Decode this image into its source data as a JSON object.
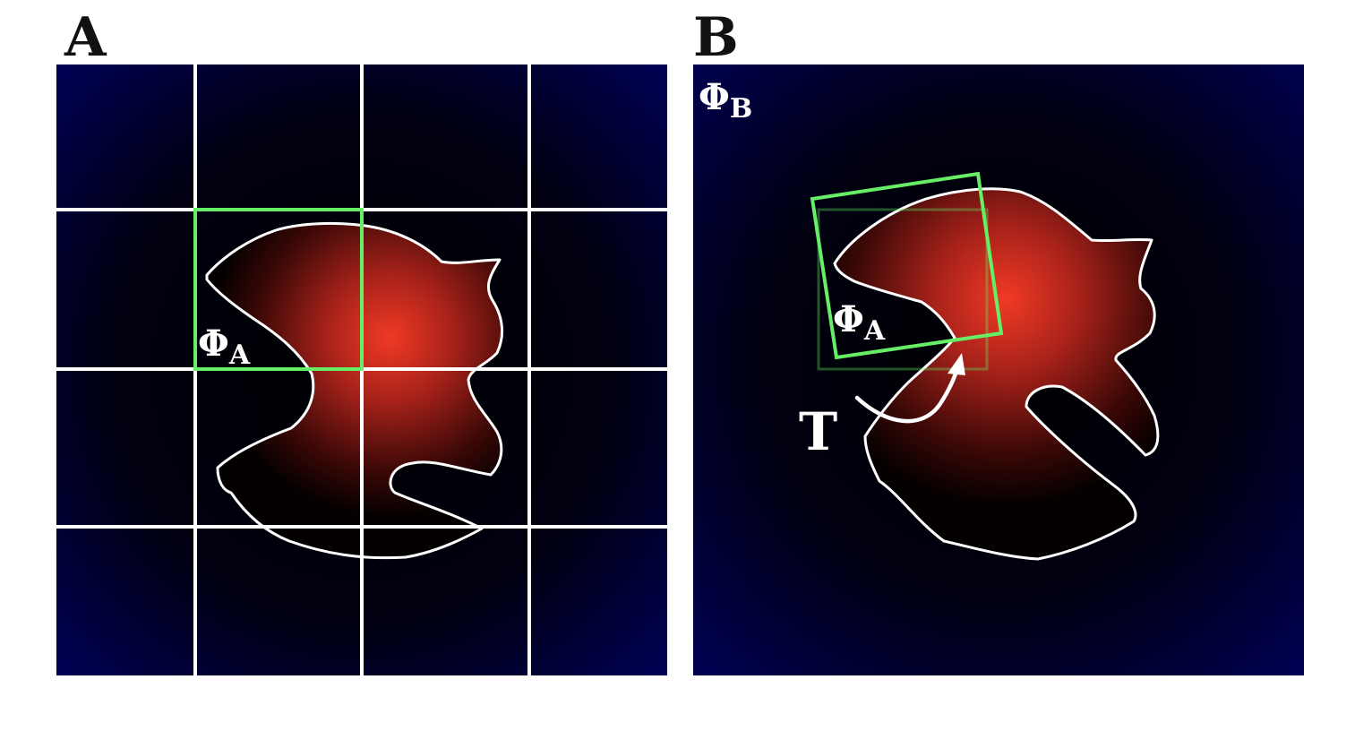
{
  "panels": {
    "a": {
      "letter": "A",
      "field_label": "Φ",
      "field_subscript": "A"
    },
    "b": {
      "letter": "B",
      "field_label": "Φ",
      "field_subscript": "B",
      "window_label": "Φ",
      "window_subscript": "A",
      "transform_label": "T"
    }
  },
  "colors": {
    "background_edge": "#000055",
    "background_center": "#000000",
    "shape_core": "#ee3322",
    "shape_mid": "#8a1a10",
    "contour": "#ffffff",
    "grid": "#ffffff",
    "window": "#66ee66"
  }
}
